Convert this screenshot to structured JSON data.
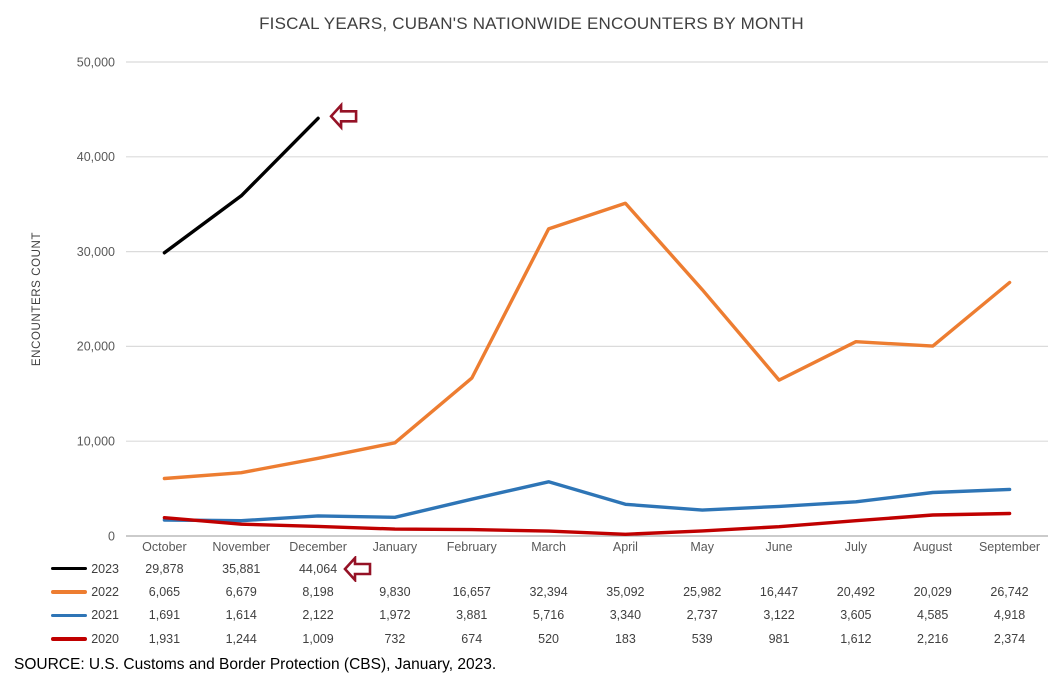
{
  "source_note": "SOURCE: U.S. Customs and Border Protection (CBS), January, 2023.",
  "chart_data": {
    "type": "line",
    "title": "FISCAL YEARS, CUBAN'S NATIONWIDE ENCOUNTERS BY MONTH",
    "xlabel": "",
    "ylabel": "ENCOUNTERS COUNT",
    "ylim": [
      0,
      50000
    ],
    "ytick_interval": 10000,
    "ytick_labels": [
      "0",
      "10,000",
      "20,000",
      "30,000",
      "40,000",
      "50,000"
    ],
    "grid": true,
    "legend_position": "table-left",
    "categories": [
      "October",
      "November",
      "December",
      "January",
      "February",
      "March",
      "April",
      "May",
      "June",
      "July",
      "August",
      "September"
    ],
    "series": [
      {
        "name": "2023",
        "color": "#000000",
        "values": [
          29878,
          35881,
          44064,
          null,
          null,
          null,
          null,
          null,
          null,
          null,
          null,
          null
        ]
      },
      {
        "name": "2022",
        "color": "#ED7D31",
        "values": [
          6065,
          6679,
          8198,
          9830,
          16657,
          32394,
          35092,
          25982,
          16447,
          20492,
          20029,
          26742
        ]
      },
      {
        "name": "2021",
        "color": "#2E75B6",
        "values": [
          1691,
          1614,
          2122,
          1972,
          3881,
          5716,
          3340,
          2737,
          3122,
          3605,
          4585,
          4918
        ]
      },
      {
        "name": "2020",
        "color": "#C00000",
        "values": [
          1931,
          1244,
          1009,
          732,
          674,
          520,
          183,
          539,
          981,
          1612,
          2216,
          2374
        ]
      }
    ],
    "annotations": [
      {
        "type": "block-arrow-left",
        "area": "chart",
        "series": "2023",
        "category": "December",
        "color": "#951226"
      },
      {
        "type": "block-arrow-left",
        "area": "table",
        "series": "2023",
        "category": "December",
        "color": "#951226"
      }
    ],
    "gridline_color": "#DBDBDB",
    "axis_line_color": "#ACACAC"
  }
}
